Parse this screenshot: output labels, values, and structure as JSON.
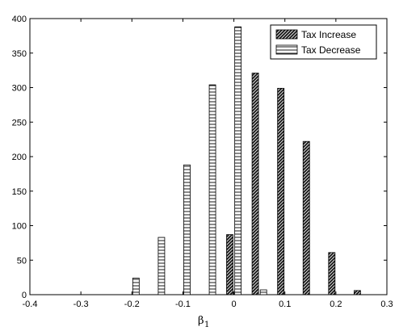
{
  "chart_data": {
    "type": "bar",
    "title": "",
    "xlabel": "β",
    "xlabel_subscript": "1",
    "ylabel": "",
    "xlim": [
      -0.4,
      0.3
    ],
    "ylim": [
      0,
      400
    ],
    "xticks": [
      -0.4,
      -0.3,
      -0.2,
      -0.1,
      0,
      0.1,
      0.2,
      0.3
    ],
    "xtick_labels": [
      "-0.4",
      "-0.3",
      "-0.2",
      "-0.1",
      "0",
      "0.1",
      "0.2",
      "0.3"
    ],
    "yticks": [
      0,
      50,
      100,
      150,
      200,
      250,
      300,
      350,
      400
    ],
    "ytick_labels": [
      "0",
      "50",
      "100",
      "150",
      "200",
      "250",
      "300",
      "350",
      "400"
    ],
    "grid": false,
    "legend_position": "top-right",
    "series": [
      {
        "name": "Tax Increase",
        "pattern": "diagonal-hatch-dark",
        "x": [
          -0.208,
          -0.158,
          -0.108,
          -0.058,
          -0.008,
          0.042,
          0.092,
          0.142,
          0.192,
          0.242
        ],
        "values": [
          0,
          0,
          0,
          0,
          87,
          321,
          299,
          222,
          61,
          6
        ]
      },
      {
        "name": "Tax Decrease",
        "pattern": "horizontal-lines",
        "x": [
          -0.192,
          -0.142,
          -0.092,
          -0.042,
          0.008,
          0.058,
          0.108,
          0.158,
          0.208,
          0.258
        ],
        "values": [
          24,
          83,
          188,
          304,
          388,
          7,
          0,
          0,
          0,
          0
        ]
      }
    ]
  }
}
